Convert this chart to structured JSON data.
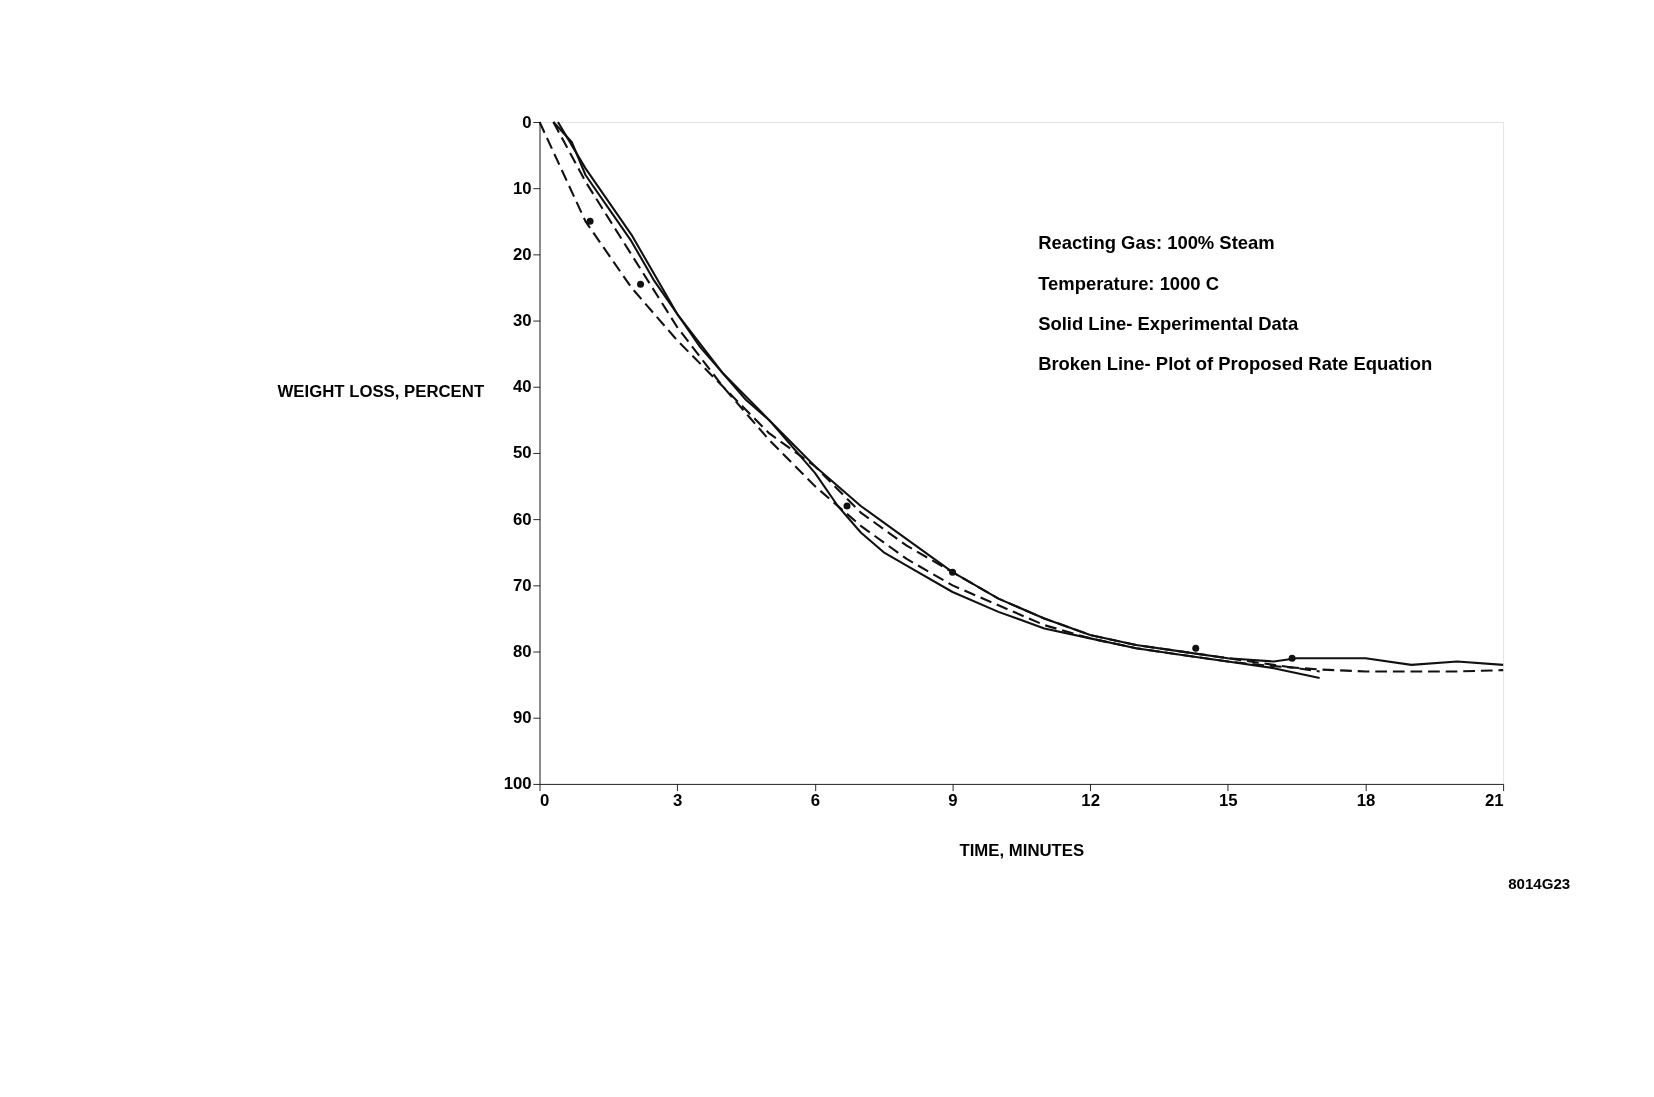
{
  "chart_data": {
    "type": "line",
    "xlabel": "TIME, MINUTES",
    "ylabel": "WEIGHT LOSS, PERCENT",
    "xlim": [
      0,
      21
    ],
    "xticks": [
      0,
      3,
      6,
      9,
      12,
      15,
      18,
      21
    ],
    "ylim": [
      100,
      0
    ],
    "yticks": [
      0,
      10,
      20,
      30,
      40,
      50,
      60,
      70,
      80,
      90,
      100
    ],
    "grid": false,
    "series": [
      {
        "color": "#111111",
        "line_style": "solid",
        "x": [
          0.3,
          0.7,
          1,
          1.5,
          2,
          2.5,
          3,
          3.5,
          4,
          4.5,
          5,
          5.5,
          6,
          6.5,
          7,
          7.5,
          8,
          9,
          10,
          11,
          12,
          13,
          14,
          15,
          16,
          17
        ],
        "values": [
          0,
          3,
          8,
          13,
          18,
          24,
          29,
          34,
          38,
          42,
          45,
          49,
          53,
          58,
          62,
          65,
          67,
          71,
          74,
          76.5,
          78,
          79.5,
          80.5,
          81.5,
          82.5,
          84
        ]
      },
      {
        "color": "#111111",
        "line_style": "solid",
        "x": [
          0.4,
          1,
          2,
          3,
          4,
          5,
          6,
          7,
          8,
          9,
          10,
          11,
          12,
          13,
          14,
          15,
          16,
          16.5,
          17.5,
          18,
          19,
          20,
          21
        ],
        "values": [
          0,
          7,
          17,
          29,
          38,
          45,
          52,
          58,
          63,
          68,
          72,
          75,
          77.5,
          79,
          80,
          81,
          81.5,
          81,
          81,
          81,
          82,
          81.5,
          82
        ]
      },
      {
        "color": "#111111",
        "line_style": "dashed",
        "x": [
          0,
          1,
          2,
          3,
          4,
          5,
          6,
          7,
          8,
          9,
          10,
          11,
          12,
          13,
          14,
          15,
          16,
          17
        ],
        "values": [
          0,
          15,
          25,
          33,
          40,
          47,
          52,
          59,
          64,
          68,
          72,
          75,
          77.5,
          79,
          80,
          81,
          82,
          83
        ]
      },
      {
        "color": "#111111",
        "line_style": "dashed",
        "x": [
          0.3,
          1,
          2,
          3,
          4,
          5,
          6,
          7,
          8,
          9,
          10,
          11,
          12,
          13,
          14,
          15,
          16,
          17,
          18,
          19,
          20,
          21
        ],
        "values": [
          0,
          9,
          20,
          31,
          40,
          48,
          55,
          61,
          66,
          70,
          73,
          76,
          78,
          79.5,
          80.5,
          81.5,
          82.2,
          82.7,
          83,
          83,
          83,
          82.8
        ]
      },
      {
        "type": "scatter",
        "marker": "circle",
        "color": "#111111",
        "x": [
          1.1,
          2.2,
          6.7,
          9,
          14.3,
          16.4
        ],
        "values": [
          15,
          24.5,
          58,
          68,
          79.5,
          81
        ]
      }
    ],
    "annotations": [
      "Reacting Gas: 100% Steam",
      "Temperature: 1000 C",
      "Solid Line- Experimental Data",
      "Broken Line- Plot of Proposed Rate Equation",
      "8014G23"
    ]
  }
}
